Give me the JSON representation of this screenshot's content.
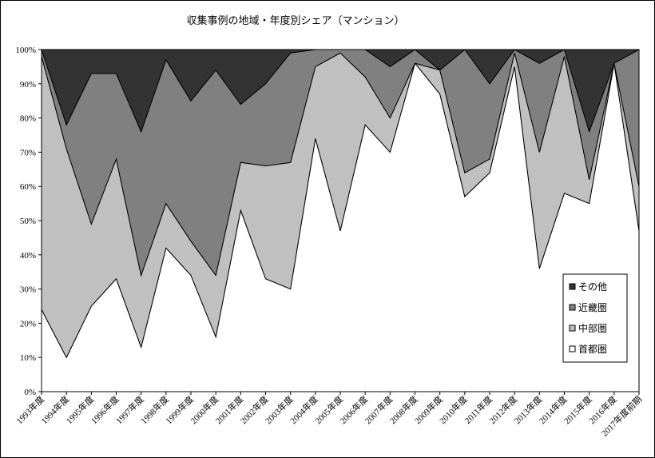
{
  "chart_data": {
    "type": "stacked-area",
    "title": "収集事例の地域・年度別シェア（マンション）",
    "categories": [
      "1993年度",
      "1994年度",
      "1995年度",
      "1996年度",
      "1997年度",
      "1998年度",
      "1999年度",
      "2000年度",
      "2001年度",
      "2002年度",
      "2003年度",
      "2004年度",
      "2005年度",
      "2006年度",
      "2007年度",
      "2008年度",
      "2009年度",
      "2010年度",
      "2011年度",
      "2012年度",
      "2013年度",
      "2014年度",
      "2015年度",
      "2016年度",
      "2017年度前期"
    ],
    "series": [
      {
        "name": "首都圏",
        "color": "#ffffff",
        "values": [
          24,
          10,
          25,
          33,
          13,
          42,
          34,
          16,
          53,
          33,
          30,
          74,
          47,
          78,
          70,
          96,
          87,
          57,
          64,
          95,
          36,
          58,
          55,
          96,
          47
        ]
      },
      {
        "name": "中部圏",
        "color": "#c0c0c0",
        "values": [
          74,
          61,
          24,
          35,
          21,
          13,
          10,
          18,
          14,
          33,
          37,
          21,
          52,
          14,
          10,
          0,
          7,
          7,
          4,
          4,
          34,
          40,
          7,
          0,
          13
        ]
      },
      {
        "name": "近畿圏",
        "color": "#808080",
        "values": [
          2,
          7,
          44,
          25,
          42,
          42,
          41,
          60,
          17,
          24,
          32,
          5,
          1,
          8,
          15,
          4,
          0,
          36,
          22,
          1,
          26,
          2,
          14,
          0,
          40
        ]
      },
      {
        "name": "その他",
        "color": "#333333",
        "values": [
          0,
          22,
          7,
          7,
          24,
          3,
          15,
          6,
          16,
          10,
          1,
          0,
          0,
          0,
          5,
          0,
          6,
          0,
          10,
          0,
          4,
          0,
          24,
          4,
          0
        ]
      }
    ],
    "ylim": [
      0,
      100
    ],
    "yticks": [
      {
        "value": 0,
        "label": "0%"
      },
      {
        "value": 10,
        "label": "10%"
      },
      {
        "value": 20,
        "label": "20%"
      },
      {
        "value": 30,
        "label": "30%"
      },
      {
        "value": 40,
        "label": "40%"
      },
      {
        "value": 50,
        "label": "50%"
      },
      {
        "value": 60,
        "label": "60%"
      },
      {
        "value": 70,
        "label": "70%"
      },
      {
        "value": 80,
        "label": "80%"
      },
      {
        "value": 90,
        "label": "90%"
      },
      {
        "value": 100,
        "label": "100%"
      }
    ],
    "grid": false,
    "legend": "lower right"
  }
}
